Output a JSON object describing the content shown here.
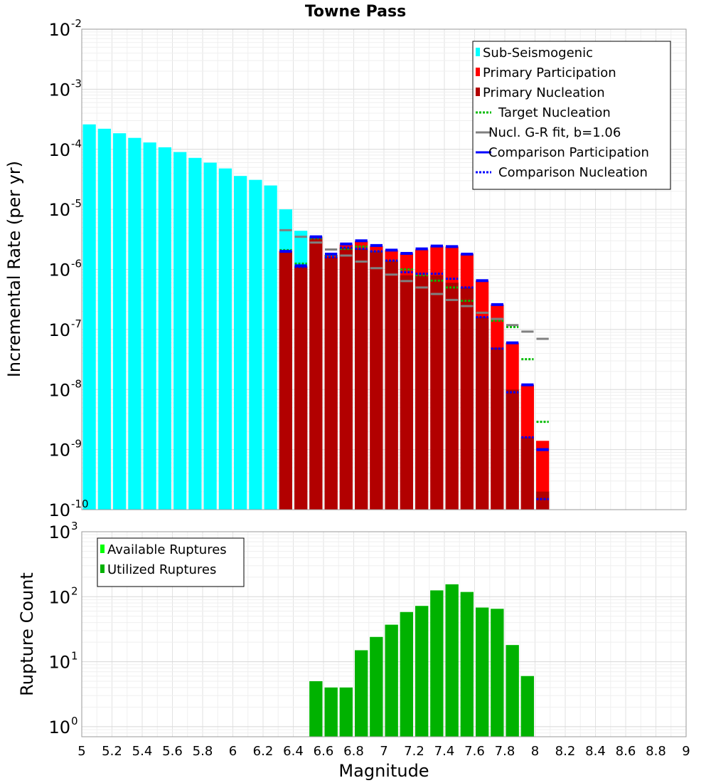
{
  "chart_data": [
    {
      "type": "bar",
      "title": "Towne Pass",
      "xlabel": "",
      "ylabel": "Incremental Rate (per yr)",
      "yscale": "log",
      "ylim": [
        1e-10,
        0.01
      ],
      "xlim": [
        5,
        9
      ],
      "grid": true,
      "legend_position": "top-right",
      "yticks": [
        {
          "base": "10",
          "exp": "-10"
        },
        {
          "base": "10",
          "exp": "-9"
        },
        {
          "base": "10",
          "exp": "-8"
        },
        {
          "base": "10",
          "exp": "-7"
        },
        {
          "base": "10",
          "exp": "-6"
        },
        {
          "base": "10",
          "exp": "-5"
        },
        {
          "base": "10",
          "exp": "-4"
        },
        {
          "base": "10",
          "exp": "-3"
        },
        {
          "base": "10",
          "exp": "-2"
        }
      ],
      "series": [
        {
          "name": "Sub-Seismogenic",
          "style": "bar",
          "color": "#00ffff",
          "x": [
            5.05,
            5.15,
            5.25,
            5.35,
            5.45,
            5.55,
            5.65,
            5.75,
            5.85,
            5.95,
            6.05,
            6.15,
            6.25,
            6.35,
            6.45,
            6.55
          ],
          "y": [
            0.00026,
            0.00022,
            0.000185,
            0.000155,
            0.00013,
            0.000108,
            9e-05,
            7.2e-05,
            6e-05,
            4.8e-05,
            3.6e-05,
            3.1e-05,
            2.5e-05,
            1e-05,
            4.4e-06,
            3.6e-06
          ]
        },
        {
          "name": "Primary Participation",
          "style": "bar",
          "color": "#ff0000",
          "x": [
            6.35,
            6.45,
            6.55,
            6.65,
            6.75,
            6.85,
            6.95,
            7.05,
            7.15,
            7.25,
            7.35,
            7.45,
            7.55,
            7.65,
            7.75,
            7.85,
            7.95,
            8.05
          ],
          "y": [
            2e-06,
            1.15e-06,
            3.5e-06,
            1.75e-06,
            2.6e-06,
            2.95e-06,
            2.45e-06,
            2.1e-06,
            1.85e-06,
            2.15e-06,
            2.45e-06,
            2.4e-06,
            1.8e-06,
            6.5e-07,
            2.6e-07,
            6e-08,
            1.2e-08,
            1.4e-09
          ]
        },
        {
          "name": "Primary Nucleation",
          "style": "bar",
          "color": "#b20000",
          "x": [
            6.35,
            6.45,
            6.55,
            6.65,
            6.75,
            6.85,
            6.95,
            7.05,
            7.15,
            7.25,
            7.35,
            7.45,
            7.55,
            7.65,
            7.75,
            7.85,
            7.95,
            8.05
          ],
          "y": [
            2e-06,
            1.1e-06,
            3.3e-06,
            1.6e-06,
            2.3e-06,
            2.2e-06,
            2e-06,
            1.4e-06,
            8e-07,
            8e-07,
            8e-07,
            6e-07,
            5e-07,
            1.6e-07,
            5e-08,
            1e-08,
            1.6e-09,
            2e-10
          ]
        },
        {
          "name": "Target Nucleation",
          "style": "dotted-step",
          "color": "#00bb00",
          "x": [
            6.35,
            6.45,
            6.55,
            6.65,
            6.75,
            6.85,
            6.95,
            7.05,
            7.15,
            7.25,
            7.35,
            7.45,
            7.55,
            7.65,
            7.75,
            7.85,
            7.95,
            8.05
          ],
          "y": [
            2.1e-06,
            1.25e-06,
            3.3e-06,
            1.65e-06,
            2.2e-06,
            2.4e-06,
            2e-06,
            1.4e-06,
            1e-06,
            8e-07,
            6.5e-07,
            5e-07,
            3e-07,
            1.9e-07,
            1.4e-07,
            1.1e-07,
            3.2e-08,
            2.9e-09
          ]
        },
        {
          "name": "Nucl. G-R fit, b=1.06",
          "style": "step",
          "color": "#808080",
          "x": [
            6.35,
            6.45,
            6.55,
            6.65,
            6.75,
            6.85,
            6.95,
            7.05,
            7.15,
            7.25,
            7.35,
            7.45,
            7.55,
            7.65,
            7.75,
            7.85,
            7.95,
            8.05
          ],
          "y": [
            4.5e-06,
            3.5e-06,
            2.8e-06,
            2.15e-06,
            1.7e-06,
            1.35e-06,
            1.05e-06,
            8.2e-07,
            6.4e-07,
            5e-07,
            3.9e-07,
            3.1e-07,
            2.45e-07,
            1.9e-07,
            1.5e-07,
            1.18e-07,
            9.2e-08,
            7e-08
          ]
        },
        {
          "name": "Comparison Participation",
          "style": "step",
          "color": "#0000ff",
          "x": [
            6.35,
            6.45,
            6.55,
            6.65,
            6.75,
            6.85,
            6.95,
            7.05,
            7.15,
            7.25,
            7.35,
            7.45,
            7.55,
            7.65,
            7.75,
            7.85,
            7.95,
            8.05
          ],
          "y": [
            2e-06,
            1.15e-06,
            3.5e-06,
            1.8e-06,
            2.65e-06,
            3e-06,
            2.5e-06,
            2.1e-06,
            1.85e-06,
            2.2e-06,
            2.45e-06,
            2.4e-06,
            1.8e-06,
            6.5e-07,
            2.6e-07,
            6e-08,
            1.2e-08,
            1e-09
          ]
        },
        {
          "name": "Comparison Nucleation",
          "style": "dotted-step",
          "color": "#0000ff",
          "x": [
            6.35,
            6.45,
            6.55,
            6.65,
            6.75,
            6.85,
            6.95,
            7.05,
            7.15,
            7.25,
            7.35,
            7.45,
            7.55,
            7.65,
            7.75,
            7.85,
            7.95,
            8.05
          ],
          "y": [
            2e-06,
            1.1e-06,
            3.4e-06,
            1.6e-06,
            2.3e-06,
            2.2e-06,
            2e-06,
            1.4e-06,
            9e-07,
            8.5e-07,
            8.5e-07,
            7e-07,
            5e-07,
            1.6e-07,
            4.8e-08,
            9e-09,
            1.6e-09,
            1.5e-10
          ]
        }
      ]
    },
    {
      "type": "bar",
      "title": "",
      "xlabel": "Magnitude",
      "ylabel": "Rupture Count",
      "yscale": "log",
      "ylim": [
        0.7,
        1000
      ],
      "xlim": [
        5,
        9
      ],
      "grid": true,
      "legend_position": "top-left",
      "xticks": [
        "5",
        "5.2",
        "5.4",
        "5.6",
        "5.8",
        "6",
        "6.2",
        "6.4",
        "6.6",
        "6.8",
        "7",
        "7.2",
        "7.4",
        "7.6",
        "7.8",
        "8",
        "8.2",
        "8.4",
        "8.6",
        "8.8",
        "9"
      ],
      "yticks": [
        {
          "base": "10",
          "exp": "0"
        },
        {
          "base": "10",
          "exp": "1"
        },
        {
          "base": "10",
          "exp": "2"
        },
        {
          "base": "10",
          "exp": "3"
        }
      ],
      "series": [
        {
          "name": "Available Ruptures",
          "style": "bar",
          "color": "#00ff00",
          "x": [
            6.55,
            6.65,
            6.75,
            6.85,
            6.95,
            7.05,
            7.15,
            7.25,
            7.35,
            7.45,
            7.55,
            7.65,
            7.75,
            7.85,
            7.95
          ],
          "y": [
            5,
            4,
            4,
            15,
            24,
            37,
            58,
            72,
            125,
            155,
            118,
            68,
            65,
            18,
            6
          ]
        },
        {
          "name": "Utilized Ruptures",
          "style": "bar",
          "color": "#00b200",
          "x": [
            6.55,
            6.65,
            6.75,
            6.85,
            6.95,
            7.05,
            7.15,
            7.25,
            7.35,
            7.45,
            7.55,
            7.65,
            7.75,
            7.85,
            7.95
          ],
          "y": [
            5,
            4,
            4,
            15,
            24,
            37,
            58,
            72,
            125,
            155,
            118,
            68,
            65,
            18,
            6
          ]
        }
      ]
    }
  ]
}
